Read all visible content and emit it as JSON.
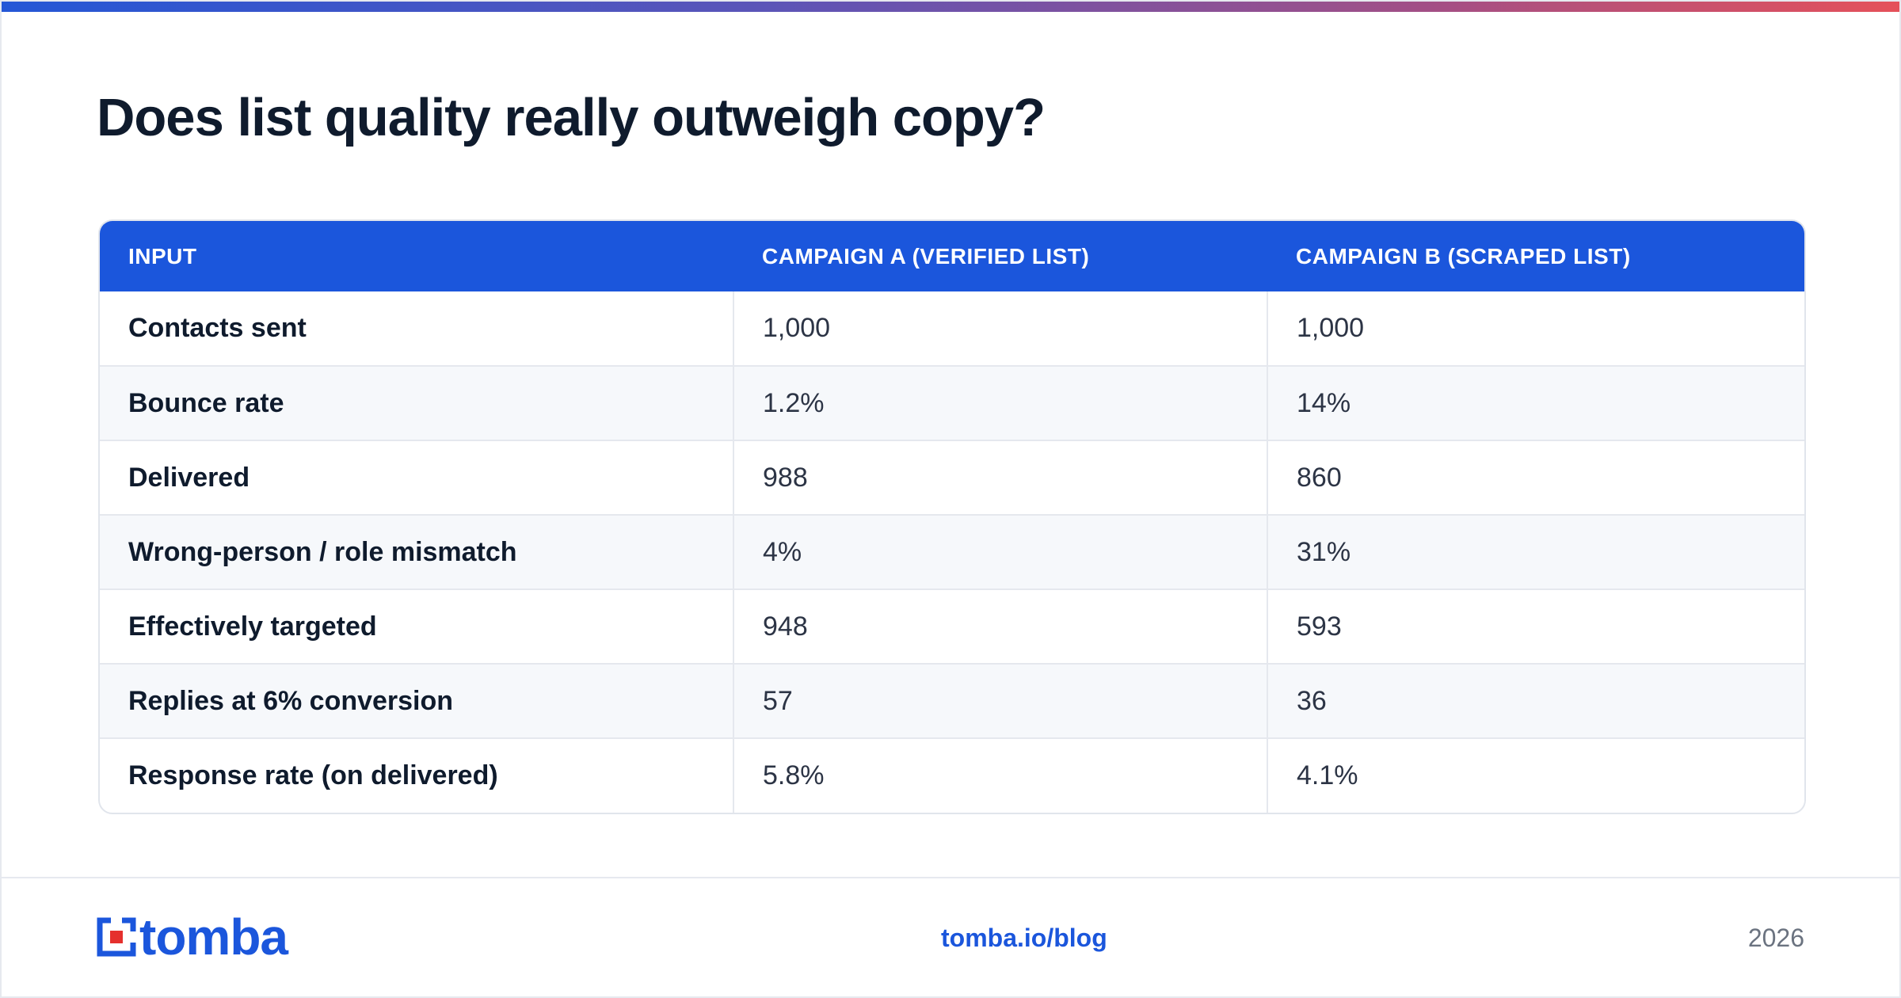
{
  "title": "Does list quality really outweigh copy?",
  "table": {
    "headers": [
      "INPUT",
      "CAMPAIGN A (VERIFIED LIST)",
      "CAMPAIGN B (SCRAPED LIST)"
    ],
    "rows": [
      [
        "Contacts sent",
        "1,000",
        "1,000"
      ],
      [
        "Bounce rate",
        "1.2%",
        "14%"
      ],
      [
        "Delivered",
        "988",
        "860"
      ],
      [
        "Wrong-person / role mismatch",
        "4%",
        "31%"
      ],
      [
        "Effectively targeted",
        "948",
        "593"
      ],
      [
        "Replies at 6% conversion",
        "57",
        "36"
      ],
      [
        "Response rate (on delivered)",
        "5.8%",
        "4.1%"
      ]
    ]
  },
  "footer": {
    "logo_text": "tomba",
    "url": "tomba.io/blog",
    "year": "2026"
  },
  "colors": {
    "accent": "#1b56dc",
    "title": "#0f1b2d",
    "logo_red": "#e5302d"
  },
  "icons": {
    "logo": "tomba-logo-icon"
  }
}
